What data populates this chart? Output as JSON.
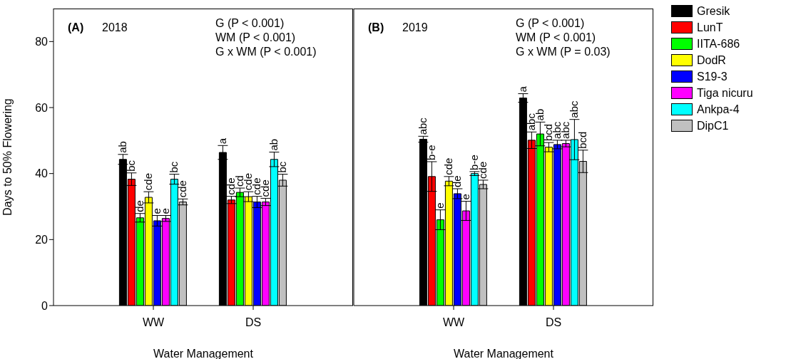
{
  "chart_data": [
    {
      "type": "bar",
      "xlabel": "Water Management",
      "ylabel": "Days to 50% Flowering",
      "annotations": [
        "(A)",
        "2018",
        "G (P < 0.001)",
        "WM (P < 0.001)",
        "G x WM (P < 0.001)"
      ],
      "categories": [
        "WW",
        "DS"
      ],
      "ylim": [
        0,
        90
      ],
      "yticks": [
        0,
        20,
        40,
        60,
        80
      ],
      "grid": false,
      "legend": false,
      "series": [
        {
          "color": "#000000",
          "values": [
            44.3,
            46.4
          ],
          "errors": [
            1.5,
            2.1
          ],
          "value_labels": [
            "ab",
            "a"
          ]
        },
        {
          "color": "#ff0000",
          "values": [
            38.3,
            32.0
          ],
          "errors": [
            1.9,
            1.1
          ],
          "value_labels": [
            "bc",
            "cde"
          ]
        },
        {
          "color": "#00ff00",
          "values": [
            26.6,
            34.3
          ],
          "errors": [
            1.3,
            1.3
          ],
          "value_labels": [
            "de",
            "cd"
          ]
        },
        {
          "color": "#ffff00",
          "values": [
            32.8,
            33.0
          ],
          "errors": [
            1.7,
            1.5
          ],
          "value_labels": [
            "cde",
            "cde"
          ]
        },
        {
          "color": "#0000ff",
          "values": [
            25.7,
            31.4
          ],
          "errors": [
            1.6,
            1.7
          ],
          "value_labels": [
            "e",
            "cde"
          ]
        },
        {
          "color": "#ff00ff",
          "values": [
            26.4,
            31.4
          ],
          "errors": [
            0.9,
            1.1
          ],
          "value_labels": [
            "e",
            "cde"
          ]
        },
        {
          "color": "#00ffff",
          "values": [
            38.3,
            44.3
          ],
          "errors": [
            1.5,
            2.2
          ],
          "value_labels": [
            "bc",
            "ab"
          ]
        },
        {
          "color": "#c0c0c0",
          "values": [
            31.4,
            38.0
          ],
          "errors": [
            0.9,
            1.8
          ],
          "value_labels": [
            "cde",
            "bc"
          ]
        }
      ]
    },
    {
      "type": "bar",
      "xlabel": "Water Management",
      "annotations": [
        "(B)",
        "2019",
        "G (P < 0.001)",
        "WM (P < 0.001)",
        "G x WM (P = 0.03)"
      ],
      "categories": [
        "WW",
        "DS"
      ],
      "ylim": [
        0,
        90
      ],
      "yticks": [
        0,
        20,
        40,
        60,
        80
      ],
      "tick_labels": "x",
      "grid": false,
      "legend": "right",
      "series": [
        {
          "name": "Gresik",
          "color": "#000000",
          "values": [
            50.4,
            62.9
          ],
          "errors": [
            0.9,
            1.3
          ],
          "value_labels": [
            "abc",
            "a"
          ]
        },
        {
          "name": "LunT",
          "color": "#ff0000",
          "values": [
            39.1,
            50.1
          ],
          "errors": [
            4.5,
            2.5
          ],
          "value_labels": [
            "b-e",
            "abc"
          ]
        },
        {
          "name": "IITA-686",
          "color": "#00ff00",
          "values": [
            26.0,
            52.0
          ],
          "errors": [
            3.0,
            3.6
          ],
          "value_labels": [
            "e",
            "ab"
          ]
        },
        {
          "name": "DodR",
          "color": "#ffff00",
          "values": [
            37.7,
            48.0
          ],
          "errors": [
            1.4,
            1.4
          ],
          "value_labels": [
            "cde",
            "bcd"
          ]
        },
        {
          "name": "S19-3",
          "color": "#0000ff",
          "values": [
            33.9,
            48.8
          ],
          "errors": [
            1.5,
            1.3
          ],
          "value_labels": [
            "de",
            "abc"
          ]
        },
        {
          "name": "Tiga nicuru",
          "color": "#ff00ff",
          "values": [
            28.7,
            49.1
          ],
          "errors": [
            2.9,
            1.0
          ],
          "value_labels": [
            "e",
            "abc"
          ]
        },
        {
          "name": "Ankpa-4",
          "color": "#00ffff",
          "values": [
            40.0,
            50.3
          ],
          "errors": [
            0.6,
            6.1
          ],
          "value_labels": [
            "b-e",
            "abc"
          ]
        },
        {
          "name": "DipC1",
          "color": "#c0c0c0",
          "values": [
            36.7,
            43.7
          ],
          "errors": [
            1.3,
            3.4
          ],
          "value_labels": [
            "cde",
            "bcd"
          ]
        }
      ]
    }
  ]
}
